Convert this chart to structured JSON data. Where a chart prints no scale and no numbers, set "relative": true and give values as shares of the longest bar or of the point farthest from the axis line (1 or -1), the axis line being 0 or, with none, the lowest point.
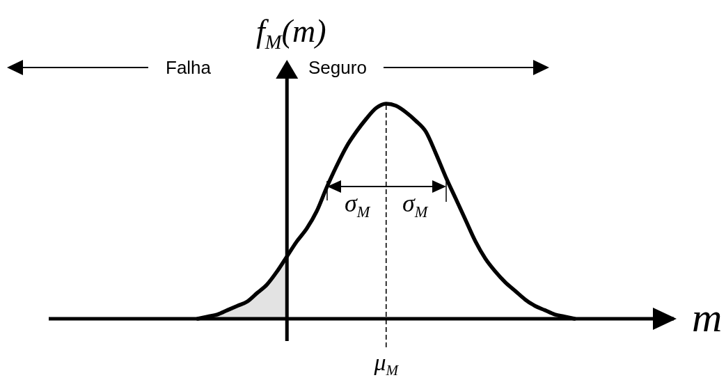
{
  "chart_data": {
    "type": "line",
    "relative": true,
    "xlabel": "m",
    "ylabel": "f$_{M}$(m)",
    "categories": [
      null,
      null,
      null,
      null,
      null,
      null,
      null,
      null,
      null,
      null,
      null,
      null,
      null,
      null,
      null,
      null,
      null,
      null,
      null,
      null,
      null,
      null,
      null,
      null,
      null,
      null,
      null,
      null,
      null,
      null,
      null,
      null,
      null,
      null,
      null,
      null,
      null,
      null,
      null
    ],
    "series": [
      {
        "type": "area",
        "color": "#e3e3e3",
        "values": [
          0,
          0.01,
          0.02,
          0.04,
          0.06,
          0.08,
          0.12,
          0.16,
          0.22,
          0.29,
          null,
          null,
          null,
          null,
          null,
          null,
          null,
          null,
          null,
          null,
          null,
          null,
          null,
          null,
          null,
          null,
          null,
          null,
          null,
          null,
          null,
          null,
          null,
          null,
          null,
          null,
          null,
          null,
          null
        ]
      },
      {
        "type": "line",
        "color": "#000000",
        "values": [
          0,
          0.01,
          0.02,
          0.04,
          0.06,
          0.08,
          0.12,
          0.16,
          0.22,
          0.29,
          0.36,
          0.42,
          0.5,
          0.61,
          0.71,
          0.8,
          0.87,
          0.93,
          0.98,
          1,
          0.99,
          0.96,
          0.92,
          0.87,
          0.77,
          0.66,
          0.56,
          0.46,
          0.36,
          0.28,
          0.22,
          0.17,
          0.13,
          0.09,
          0.06,
          0.04,
          0.02,
          0.01,
          0
        ]
      }
    ],
    "annotations": [
      "Falha",
      "Seguro",
      "σ$_{M}$",
      "σ$_{M}$",
      "μ$_{M}$"
    ]
  }
}
